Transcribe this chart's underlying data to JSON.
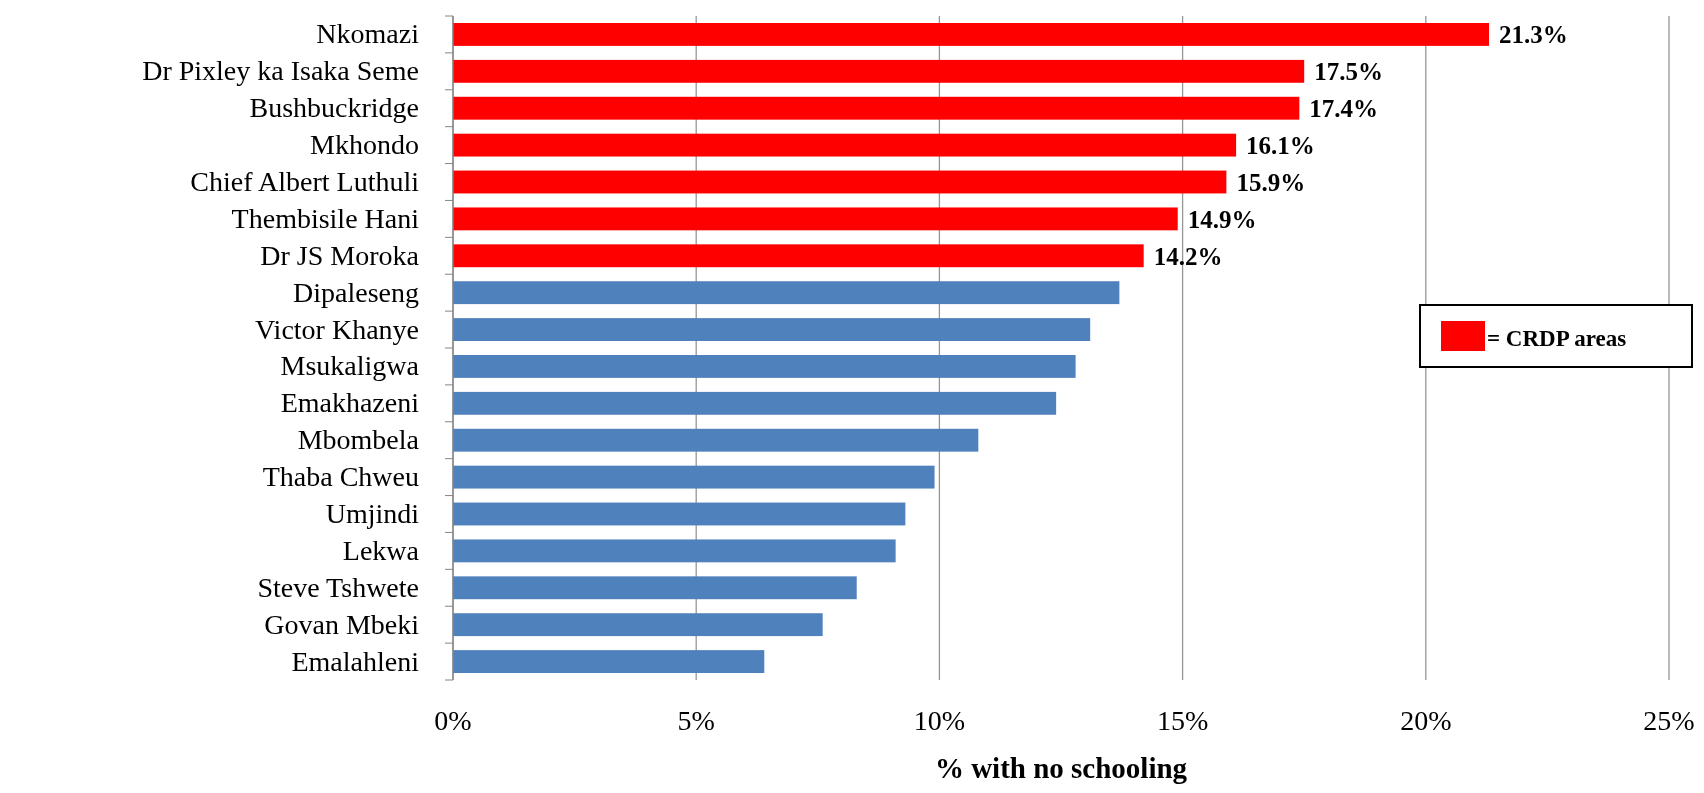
{
  "chart_data": {
    "type": "bar",
    "orientation": "horizontal",
    "xlabel": "% with no schooling",
    "categories": [
      "Nkomazi",
      "Dr Pixley ka Isaka Seme",
      "Bushbuckridge",
      "Mkhondo",
      "Chief Albert Luthuli",
      "Thembisile Hani",
      "Dr JS Moroka",
      "Dipaleseng",
      "Victor Khanye",
      "Msukaligwa",
      "Emakhazeni",
      "Mbombela",
      "Thaba Chweu",
      "Umjindi",
      "Lekwa",
      "Steve Tshwete",
      "Govan Mbeki",
      "Emalahleni"
    ],
    "series": [
      {
        "name": "= CRDP areas",
        "color": "#ff0000",
        "values": [
          21.3,
          17.5,
          17.4,
          16.1,
          15.9,
          14.9,
          14.2,
          null,
          null,
          null,
          null,
          null,
          null,
          null,
          null,
          null,
          null,
          null
        ],
        "value_labels": [
          "21.3%",
          "17.5%",
          "17.4%",
          "16.1%",
          "15.9%",
          "14.9%",
          "14.2%",
          null,
          null,
          null,
          null,
          null,
          null,
          null,
          null,
          null,
          null,
          null
        ]
      },
      {
        "color": "#4f81bd",
        "values": [
          null,
          null,
          null,
          null,
          null,
          null,
          null,
          13.7,
          13.1,
          12.8,
          12.4,
          10.8,
          9.9,
          9.3,
          9.1,
          8.3,
          7.6,
          6.4
        ]
      }
    ],
    "xlim": [
      0,
      25
    ],
    "xticks": [
      {
        "value": 0,
        "label": "0%"
      },
      {
        "value": 5,
        "label": "5%"
      },
      {
        "value": 10,
        "label": "10%"
      },
      {
        "value": 15,
        "label": "15%"
      },
      {
        "value": 20,
        "label": "20%"
      },
      {
        "value": 25,
        "label": "25%"
      }
    ],
    "grid": "x",
    "legend": "right"
  }
}
